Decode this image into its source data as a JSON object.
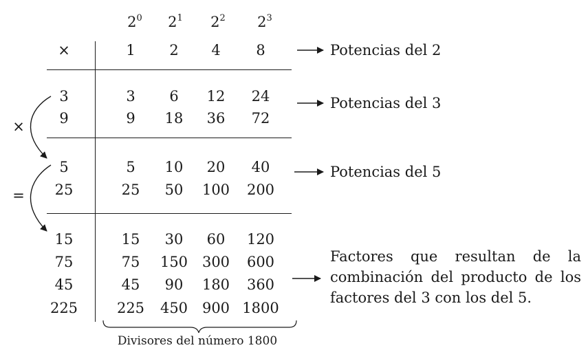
{
  "header": {
    "corner_symbol": "×",
    "exponent_base": "2",
    "exponents": [
      "0",
      "1",
      "2",
      "3"
    ],
    "powers_of_2": [
      "1",
      "2",
      "4",
      "8"
    ]
  },
  "groups": [
    {
      "left": [
        "3",
        "9"
      ],
      "rows": [
        [
          "3",
          "6",
          "12",
          "24"
        ],
        [
          "9",
          "18",
          "36",
          "72"
        ]
      ],
      "label": "Potencias del 3"
    },
    {
      "left": [
        "5",
        "25"
      ],
      "rows": [
        [
          "5",
          "10",
          "20",
          "40"
        ],
        [
          "25",
          "50",
          "100",
          "200"
        ]
      ],
      "label": "Potencias del 5"
    },
    {
      "left": [
        "15",
        "75",
        "45",
        "225"
      ],
      "rows": [
        [
          "15",
          "30",
          "60",
          "120"
        ],
        [
          "75",
          "150",
          "300",
          "600"
        ],
        [
          "45",
          "90",
          "180",
          "360"
        ],
        [
          "225",
          "450",
          "900",
          "1800"
        ]
      ]
    }
  ],
  "labels": {
    "powers_2": "Potencias del 2"
  },
  "side_symbols": {
    "times": "×",
    "equals": "="
  },
  "note": "Factores que resultan de la combinación del producto de los factores del 3 con los del 5.",
  "brace_caption": "Divisores del número 1800"
}
